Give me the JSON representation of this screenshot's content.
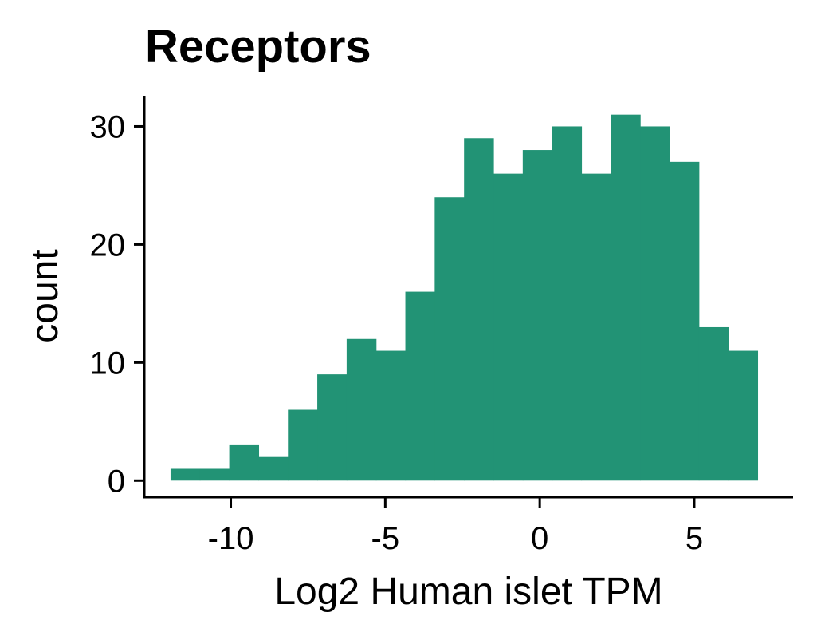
{
  "chart_data": {
    "type": "bar",
    "title": "Receptors",
    "xlabel": "Log2 Human islet TPM",
    "ylabel": "count",
    "xlim": [
      -12.8,
      8.2
    ],
    "ylim": [
      -1.4,
      32.6
    ],
    "bin_width": 0.95,
    "bins": [
      {
        "x0": -11.95,
        "x1": -11.0,
        "count": 1
      },
      {
        "x0": -11.0,
        "x1": -10.05,
        "count": 1
      },
      {
        "x0": -10.05,
        "x1": -9.1,
        "count": 3
      },
      {
        "x0": -9.1,
        "x1": -8.15,
        "count": 2
      },
      {
        "x0": -8.15,
        "x1": -7.2,
        "count": 6
      },
      {
        "x0": -7.2,
        "x1": -6.25,
        "count": 9
      },
      {
        "x0": -6.25,
        "x1": -5.3,
        "count": 12
      },
      {
        "x0": -5.3,
        "x1": -4.35,
        "count": 11
      },
      {
        "x0": -4.35,
        "x1": -3.4,
        "count": 16
      },
      {
        "x0": -3.4,
        "x1": -2.45,
        "count": 24
      },
      {
        "x0": -2.45,
        "x1": -1.5,
        "count": 29
      },
      {
        "x0": -1.5,
        "x1": -0.55,
        "count": 26
      },
      {
        "x0": -0.55,
        "x1": 0.4,
        "count": 28
      },
      {
        "x0": 0.4,
        "x1": 1.35,
        "count": 30
      },
      {
        "x0": 1.35,
        "x1": 2.3,
        "count": 26
      },
      {
        "x0": 2.3,
        "x1": 3.25,
        "count": 31
      },
      {
        "x0": 3.25,
        "x1": 4.2,
        "count": 30
      },
      {
        "x0": 4.2,
        "x1": 5.15,
        "count": 27
      },
      {
        "x0": 5.15,
        "x1": 6.1,
        "count": 13
      },
      {
        "x0": 6.1,
        "x1": 7.05,
        "count": 11
      }
    ],
    "x_ticks": [
      {
        "value": -10,
        "label": "-10"
      },
      {
        "value": -5,
        "label": "-5"
      },
      {
        "value": 0,
        "label": "0"
      },
      {
        "value": 5,
        "label": "5"
      }
    ],
    "y_ticks": [
      {
        "value": 0,
        "label": "0"
      },
      {
        "value": 10,
        "label": "10"
      },
      {
        "value": 20,
        "label": "20"
      },
      {
        "value": 30,
        "label": "30"
      }
    ],
    "bar_color": "#229375",
    "axis_color": "#000000",
    "grid": false,
    "legend": false
  }
}
